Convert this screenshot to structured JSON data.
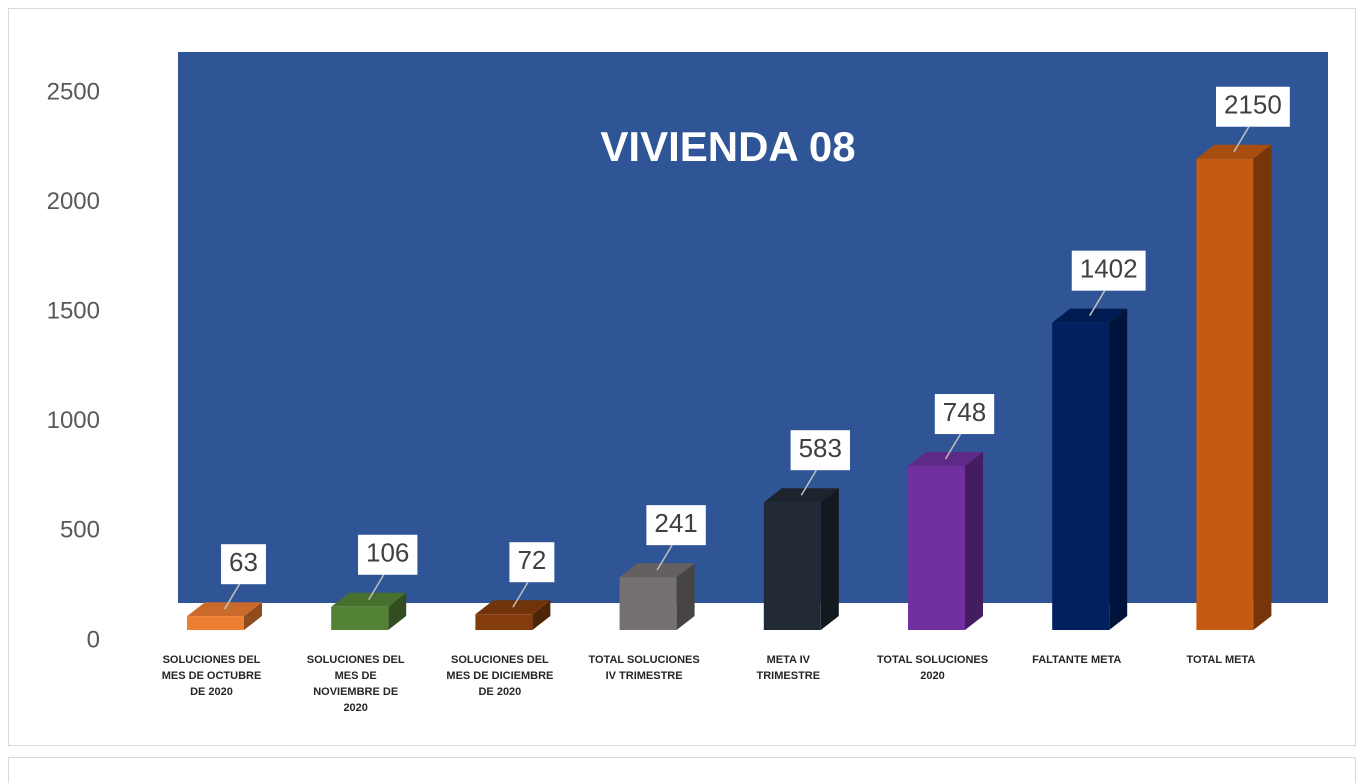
{
  "chart_data": {
    "type": "bar3d",
    "title": "VIVIENDA 08",
    "categories": [
      "SOLUCIONES DEL\nMES DE OCTUBRE\nDE 2020",
      "SOLUCIONES DEL\nMES DE\nNOVIEMBRE  DE\n2020",
      "SOLUCIONES DEL\nMES DE DICIEMBRE\nDE 2020",
      "TOTAL SOLUCIONES\nIV TRIMESTRE",
      "META IV\nTRIMESTRE",
      "TOTAL SOLUCIONES\n2020",
      "FALTANTE META",
      "TOTAL META"
    ],
    "values": [
      63,
      106,
      72,
      241,
      583,
      748,
      1402,
      2150
    ],
    "colors": [
      "#ED7D31",
      "#548235",
      "#843C0C",
      "#767171",
      "#222A35",
      "#7030A0",
      "#002060",
      "#C55A11"
    ],
    "ylim": [
      0,
      2500
    ],
    "yticks": [
      0,
      500,
      1000,
      1500,
      2000,
      2500
    ],
    "grid": false,
    "plot_background": "#2F5597"
  }
}
